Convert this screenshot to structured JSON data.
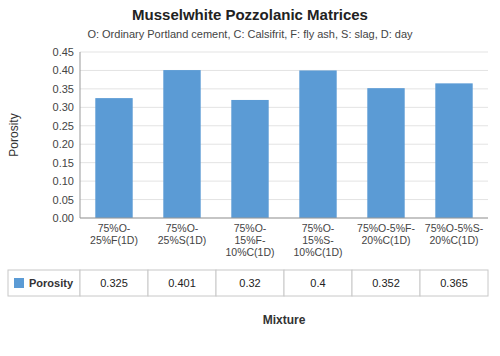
{
  "chart_data": {
    "type": "bar",
    "title": "Musselwhite Pozzolanic Matrices",
    "subtitle": "O: Ordinary Portland cement, C: Calsifrit, F: fly ash, S: slag, D: day",
    "xlabel": "Mixture",
    "ylabel": "Porosity",
    "categories": [
      "75%O-\n25%F(1D)",
      "75%O-\n25%S(1D)",
      "75%O-\n15%F-\n10%C(1D)",
      "75%O-\n15%S-\n10%C(1D)",
      "75%O-5%F-\n20%C(1D)",
      "75%O-5%S-\n20%C(1D)"
    ],
    "series": [
      {
        "name": "Porosity",
        "color": "#5b9bd5",
        "values": [
          0.325,
          0.401,
          0.32,
          0.4,
          0.352,
          0.365
        ]
      }
    ],
    "ylim": [
      0,
      0.45
    ],
    "yticks": [
      {
        "value": 0,
        "label": "0.00"
      },
      0.05,
      {
        "value": 0.1,
        "label": "0.10"
      },
      0.15,
      {
        "value": 0.2,
        "label": "0.20"
      },
      0.25,
      {
        "value": 0.3,
        "label": "0.30"
      },
      0.35,
      {
        "value": 0.4,
        "label": "0.40"
      },
      0.45
    ],
    "grid": true,
    "legend": "bottom",
    "data_labels": true
  }
}
